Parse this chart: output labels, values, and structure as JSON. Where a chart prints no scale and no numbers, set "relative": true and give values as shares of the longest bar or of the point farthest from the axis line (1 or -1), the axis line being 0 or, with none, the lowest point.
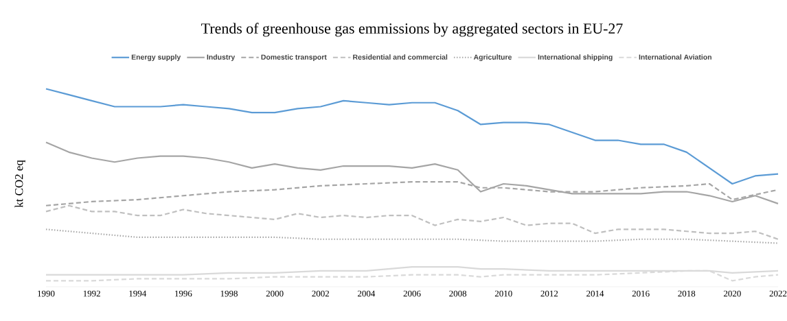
{
  "chart_data": {
    "type": "line",
    "title": "Trends of greenhouse gas emmissions by aggregated sectors in EU-27",
    "ylabel": "kt CO2 eq",
    "relative": true,
    "legend": "top",
    "xlim": [
      1990,
      2022
    ],
    "xticks": [
      1990,
      1992,
      1994,
      1996,
      1998,
      2000,
      2002,
      2004,
      2006,
      2008,
      2010,
      2012,
      2014,
      2016,
      2018,
      2020,
      2022
    ],
    "x": [
      1990,
      1991,
      1992,
      1993,
      1994,
      1995,
      1996,
      1997,
      1998,
      1999,
      2000,
      2001,
      2002,
      2003,
      2004,
      2005,
      2006,
      2007,
      2008,
      2009,
      2010,
      2011,
      2012,
      2013,
      2014,
      2015,
      2016,
      2017,
      2018,
      2019,
      2020,
      2021,
      2022
    ],
    "series": [
      {
        "name": "Energy supply",
        "color": "#5b9bd5",
        "line_style": "solid",
        "values": [
          1.0,
          0.97,
          0.94,
          0.91,
          0.91,
          0.91,
          0.92,
          0.91,
          0.9,
          0.88,
          0.88,
          0.9,
          0.91,
          0.94,
          0.93,
          0.92,
          0.93,
          0.93,
          0.89,
          0.82,
          0.83,
          0.83,
          0.82,
          0.78,
          0.74,
          0.74,
          0.72,
          0.72,
          0.68,
          0.6,
          0.52,
          0.56,
          0.57
        ]
      },
      {
        "name": "Industry",
        "color": "#a5a5a5",
        "line_style": "solid",
        "values": [
          0.73,
          0.68,
          0.65,
          0.63,
          0.65,
          0.66,
          0.66,
          0.65,
          0.63,
          0.6,
          0.62,
          0.6,
          0.59,
          0.61,
          0.61,
          0.61,
          0.6,
          0.62,
          0.59,
          0.48,
          0.52,
          0.51,
          0.49,
          0.47,
          0.47,
          0.47,
          0.47,
          0.48,
          0.48,
          0.46,
          0.43,
          0.46,
          0.42
        ]
      },
      {
        "name": "Domestic transport",
        "color": "#a5a5a5",
        "line_style": "dashed",
        "x": [
          1990,
          1992,
          1994,
          1996,
          1998,
          2000,
          2002,
          2004,
          2006,
          2007,
          2008,
          2009,
          2010,
          2012,
          2014,
          2016,
          2018,
          2019,
          2020,
          2022
        ],
        "values": [
          0.41,
          0.43,
          0.44,
          0.46,
          0.48,
          0.49,
          0.51,
          0.52,
          0.53,
          0.53,
          0.53,
          0.5,
          0.5,
          0.48,
          0.48,
          0.5,
          0.51,
          0.52,
          0.44,
          0.49
        ]
      },
      {
        "name": "Residential and commercial",
        "color": "#bfbfbf",
        "line_style": "dashed",
        "values": [
          0.38,
          0.41,
          0.38,
          0.38,
          0.36,
          0.36,
          0.39,
          0.37,
          0.36,
          0.35,
          0.34,
          0.37,
          0.35,
          0.36,
          0.35,
          0.36,
          0.36,
          0.31,
          0.34,
          0.33,
          0.35,
          0.31,
          0.32,
          0.32,
          0.27,
          0.29,
          0.29,
          0.29,
          0.28,
          0.27,
          0.27,
          0.28,
          0.24
        ]
      },
      {
        "name": "Agriculture",
        "color": "#a5a5a5",
        "line_style": "dotted",
        "x": [
          1990,
          1992,
          1993,
          1994,
          1996,
          1998,
          2000,
          2002,
          2004,
          2006,
          2008,
          2010,
          2012,
          2014,
          2016,
          2018,
          2020,
          2022
        ],
        "values": [
          0.29,
          0.27,
          0.26,
          0.25,
          0.25,
          0.25,
          0.25,
          0.24,
          0.24,
          0.24,
          0.24,
          0.23,
          0.23,
          0.23,
          0.24,
          0.24,
          0.23,
          0.22
        ]
      },
      {
        "name": "International shipping",
        "color": "#d9d9d9",
        "line_style": "solid",
        "x": [
          1990,
          1994,
          1996,
          1998,
          2000,
          2002,
          2004,
          2006,
          2007,
          2008,
          2009,
          2010,
          2012,
          2014,
          2016,
          2018,
          2019,
          2020,
          2022
        ],
        "values": [
          0.06,
          0.06,
          0.06,
          0.07,
          0.07,
          0.08,
          0.08,
          0.1,
          0.1,
          0.1,
          0.09,
          0.09,
          0.08,
          0.08,
          0.08,
          0.08,
          0.08,
          0.07,
          0.08
        ]
      },
      {
        "name": "International Aviation",
        "color": "#d9d9d9",
        "line_style": "dashed",
        "x": [
          1990,
          1992,
          1994,
          1996,
          1998,
          2000,
          2002,
          2004,
          2006,
          2008,
          2009,
          2010,
          2012,
          2014,
          2016,
          2018,
          2019,
          2020,
          2021,
          2022
        ],
        "values": [
          0.03,
          0.03,
          0.04,
          0.04,
          0.04,
          0.05,
          0.05,
          0.05,
          0.06,
          0.06,
          0.05,
          0.06,
          0.06,
          0.06,
          0.07,
          0.08,
          0.08,
          0.03,
          0.05,
          0.06
        ]
      }
    ]
  }
}
